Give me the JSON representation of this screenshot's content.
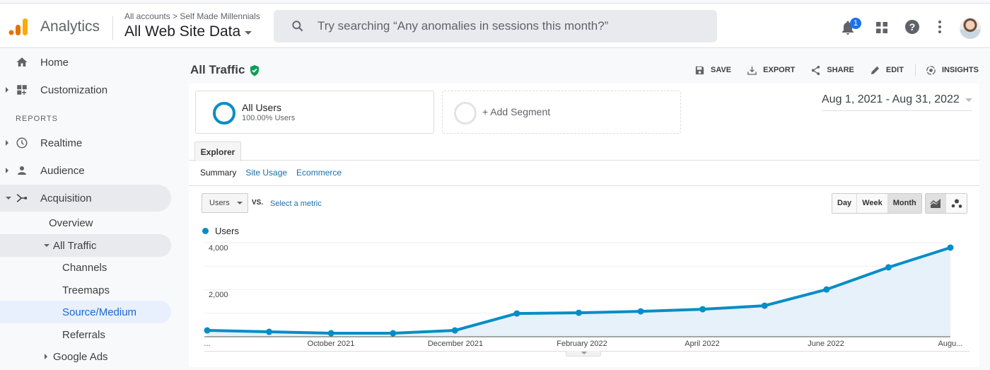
{
  "header": {
    "app_name": "Analytics",
    "breadcrumb": "All accounts > Self Made Millennials",
    "property": "All Web Site Data",
    "search_placeholder": "Try searching “Any anomalies in sessions this month?”",
    "notification_count": "1",
    "icons": [
      "bell-icon",
      "apps-grid-icon",
      "help-icon",
      "more-vert-icon",
      "avatar"
    ]
  },
  "sidebar": {
    "section_label": "REPORTS",
    "items": [
      {
        "label": "Home",
        "icon": "home-icon"
      },
      {
        "label": "Customization",
        "icon": "dashboard-add-icon"
      },
      {
        "label": "Realtime",
        "icon": "clock-icon"
      },
      {
        "label": "Audience",
        "icon": "person-icon"
      },
      {
        "label": "Acquisition",
        "icon": "acquisition-icon"
      },
      {
        "label": "Overview"
      },
      {
        "label": "All Traffic"
      },
      {
        "label": "Channels"
      },
      {
        "label": "Treemaps"
      },
      {
        "label": "Source/Medium"
      },
      {
        "label": "Referrals"
      },
      {
        "label": "Google Ads"
      }
    ]
  },
  "page": {
    "title": "All Traffic",
    "actions": [
      "SAVE",
      "EXPORT",
      "SHARE",
      "EDIT",
      "INSIGHTS"
    ],
    "date_range": "Aug 1, 2021 - Aug 31, 2022",
    "segment": {
      "name": "All Users",
      "sub": "100.00% Users"
    },
    "add_segment": "+ Add Segment",
    "tab": "Explorer",
    "subtabs": [
      "Summary",
      "Site Usage",
      "Ecommerce"
    ],
    "metric_select": "Users",
    "vs_label": "VS.",
    "select_metric": "Select a metric",
    "periods": [
      "Day",
      "Week",
      "Month"
    ],
    "active_period": "Month",
    "legend": "Users"
  },
  "chart_data": {
    "type": "area",
    "title": "",
    "series": [
      {
        "name": "Users",
        "color": "#058dc7",
        "values": [
          270,
          210,
          150,
          150,
          270,
          990,
          1020,
          1080,
          1170,
          1320,
          2010,
          2950,
          3790
        ]
      }
    ],
    "x": [
      "Aug 2021",
      "Sep 2021",
      "Oct 2021",
      "Nov 2021",
      "Dec 2021",
      "Jan 2022",
      "Feb 2022",
      "Mar 2022",
      "Apr 2022",
      "May 2022",
      "Jun 2022",
      "Jul 2022",
      "Aug 2022"
    ],
    "x_tick_labels": [
      "...",
      "October 2021",
      "December 2021",
      "February 2022",
      "April 2022",
      "June 2022",
      "Augu..."
    ],
    "y_tick_labels": [
      "4,000",
      "2,000"
    ],
    "ylim": [
      0,
      4400
    ],
    "xlabel": "",
    "ylabel": "",
    "grid": true,
    "legend_position": "top-left"
  }
}
